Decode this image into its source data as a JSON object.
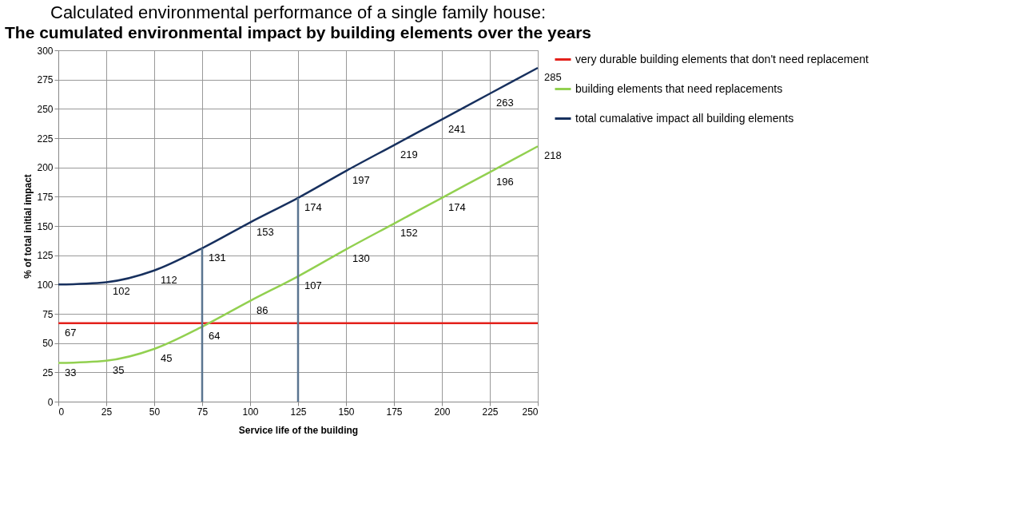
{
  "chart_data": {
    "type": "line",
    "title": "Calculated environmental performance of a single family house:",
    "subtitle": "The cumulated environmental impact by building elements over the years",
    "xlabel": "Service life of the building",
    "ylabel": "% of total initial impact",
    "x": [
      0,
      25,
      50,
      75,
      100,
      125,
      150,
      175,
      200,
      225,
      250
    ],
    "series": [
      {
        "name": "very durable building elements that don't need replacement",
        "color": "#e3201b",
        "values": [
          67,
          67,
          67,
          67,
          67,
          67,
          67,
          67,
          67,
          67,
          67
        ],
        "value_labels": [
          "67",
          null,
          null,
          null,
          null,
          null,
          null,
          null,
          null,
          null,
          null
        ]
      },
      {
        "name": "building elements that need replacements",
        "color": "#92d050",
        "values": [
          33,
          35,
          45,
          64,
          86,
          107,
          130,
          152,
          174,
          196,
          218
        ],
        "value_labels": [
          "33",
          "35",
          "45",
          "64",
          "86",
          "107",
          "130",
          "152",
          "174",
          "196",
          "218"
        ]
      },
      {
        "name": "total cumalative impact all building elements",
        "color": "#17305e",
        "values": [
          100,
          102,
          112,
          131,
          153,
          174,
          197,
          219,
          241,
          263,
          285
        ],
        "value_labels": [
          null,
          "102",
          "112",
          "131",
          "153",
          "174",
          "197",
          "219",
          "241",
          "263",
          "285"
        ]
      }
    ],
    "xlim": [
      0,
      250
    ],
    "xticks": [
      0,
      25,
      50,
      75,
      100,
      125,
      150,
      175,
      200,
      225,
      250
    ],
    "ylim": [
      0,
      300
    ],
    "yticks": [
      0,
      25,
      50,
      75,
      100,
      125,
      150,
      175,
      200,
      225,
      250,
      275,
      300
    ],
    "ref_lines": [
      {
        "axis": "x",
        "value": 75,
        "color": "#5b7590"
      },
      {
        "axis": "x",
        "value": 125,
        "color": "#5b7590"
      }
    ],
    "grid": true,
    "legend": "right",
    "marker": "none",
    "line_style": "solid"
  }
}
